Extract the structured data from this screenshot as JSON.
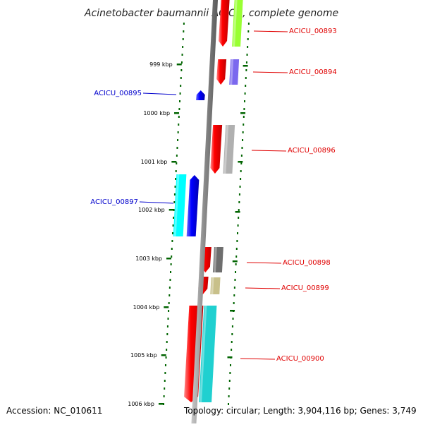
{
  "title": "Acinetobacter baumannii ACICU, complete genome",
  "footer": {
    "accession": "Accession: NC_010611",
    "summary": "Topology: circular; Length: 3,904,116 bp; Genes: 3,749"
  },
  "colors": {
    "forward_label": "#e00000",
    "reverse_label": "#0000cc",
    "backbone": "#808080",
    "tick": "#006400"
  },
  "scale": {
    "unit": "kbp",
    "ticks": [
      {
        "label": "999 kbp"
      },
      {
        "label": "1000 kbp"
      },
      {
        "label": "1001 kbp"
      },
      {
        "label": "1002 kbp"
      },
      {
        "label": "1003 kbp"
      },
      {
        "label": "1004 kbp"
      },
      {
        "label": "1005 kbp"
      },
      {
        "label": "1006 kbp"
      }
    ]
  },
  "genes": [
    {
      "name": "ACICU_00893",
      "strand": "forward",
      "color": "#99ff33"
    },
    {
      "name": "ACICU_00894",
      "strand": "forward",
      "color": "#7b68ee"
    },
    {
      "name": "ACICU_00895",
      "strand": "reverse",
      "color": "#0000ee"
    },
    {
      "name": "ACICU_00896",
      "strand": "forward",
      "color": "#b0b0b0"
    },
    {
      "name": "ACICU_00897",
      "strand": "reverse",
      "color": "#00ffff"
    },
    {
      "name": "ACICU_00898",
      "strand": "forward",
      "color": "#6e6e6e"
    },
    {
      "name": "ACICU_00899",
      "strand": "forward",
      "color": "#c8c08a"
    },
    {
      "name": "ACICU_00900",
      "strand": "forward",
      "color": "#20d0d0"
    }
  ]
}
